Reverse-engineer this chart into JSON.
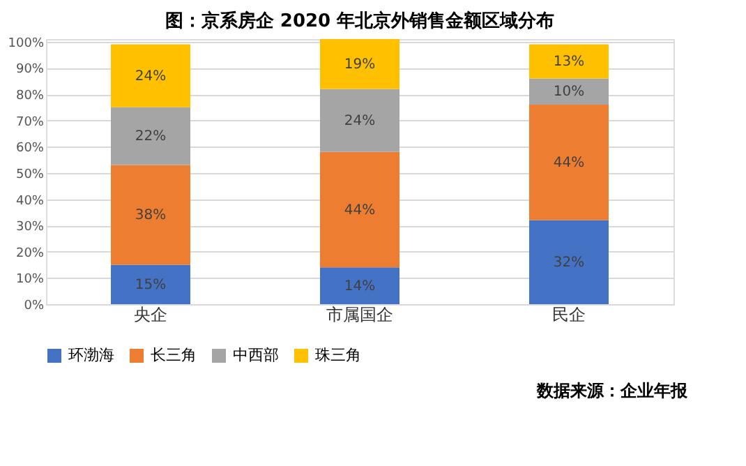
{
  "chart_data": {
    "type": "bar",
    "stacked": true,
    "title": "图：京系房企 2020 年北京外销售金额区域分布",
    "categories": [
      "央企",
      "市属国企",
      "民企"
    ],
    "series": [
      {
        "name": "环渤海",
        "color": "#4472c4",
        "values": [
          15,
          14,
          32
        ],
        "value_labels": [
          "15%",
          "14%",
          "32%"
        ]
      },
      {
        "name": "长三角",
        "color": "#ed7d31",
        "values": [
          38,
          44,
          44
        ],
        "value_labels": [
          "38%",
          "44%",
          "44%"
        ]
      },
      {
        "name": "中西部",
        "color": "#a5a5a5",
        "values": [
          22,
          24,
          10
        ],
        "value_labels": [
          "22%",
          "24%",
          "10%"
        ]
      },
      {
        "name": "珠三角",
        "color": "#ffc000",
        "values": [
          24,
          19,
          13
        ],
        "value_labels": [
          "24%",
          "19%",
          "13%"
        ]
      }
    ],
    "ylim": [
      0,
      101
    ],
    "yticks": [
      {
        "value": 0,
        "label": "0%"
      },
      {
        "value": 10,
        "label": "10%"
      },
      {
        "value": 20,
        "label": "20%"
      },
      {
        "value": 30,
        "label": "30%"
      },
      {
        "value": 40,
        "label": "40%"
      },
      {
        "value": 50,
        "label": "50%"
      },
      {
        "value": 60,
        "label": "60%"
      },
      {
        "value": 70,
        "label": "70%"
      },
      {
        "value": 80,
        "label": "80%"
      },
      {
        "value": 90,
        "label": "90%"
      },
      {
        "value": 100,
        "label": "100%"
      }
    ],
    "grid": "y",
    "legend": "bottom",
    "annotations": [
      "数据来源：企业年报"
    ]
  }
}
